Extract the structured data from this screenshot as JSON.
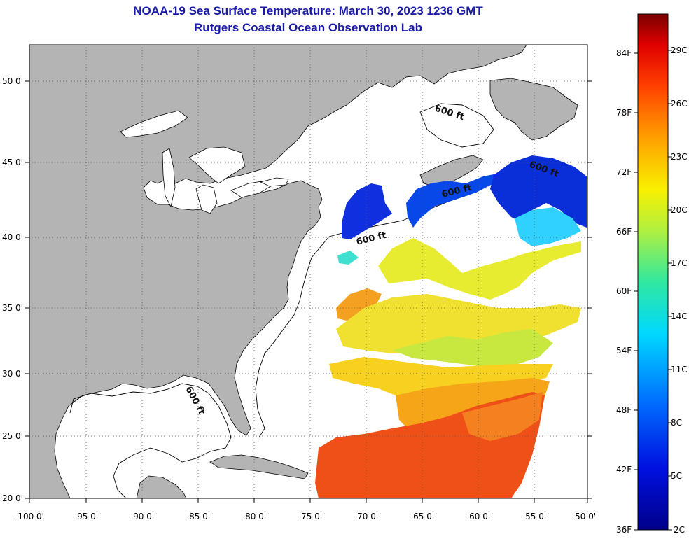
{
  "header": {
    "title": "NOAA-19 Sea Surface Temperature:  March 30, 2023 1236 GMT",
    "subtitle": "Rutgers Coastal Ocean Observation Lab"
  },
  "map": {
    "lon_range": [
      -100,
      -50
    ],
    "lat_range": [
      20,
      52
    ],
    "lon_ticks": [
      "-100 0'",
      "-95 0'",
      "-90 0'",
      "-85 0'",
      "-80 0'",
      "-75 0'",
      "-70 0'",
      "-65 0'",
      "-60 0'",
      "-55 0'",
      "-50 0'"
    ],
    "lat_ticks": [
      "20 0'",
      "25 0'",
      "30 0'",
      "35 0'",
      "40 0'",
      "45 0'",
      "50 0'"
    ],
    "contour_label": "600 ft",
    "land_color": "#b4b4b4",
    "grid": "dotted"
  },
  "colorbar": {
    "fahrenheit_labels": [
      "36F",
      "42F",
      "48F",
      "54F",
      "60F",
      "66F",
      "72F",
      "78F",
      "84F"
    ],
    "celsius_labels": [
      "2C",
      "5C",
      "8C",
      "11C",
      "14C",
      "17C",
      "20C",
      "23C",
      "26C",
      "29C"
    ],
    "range_c": [
      2,
      31
    ]
  }
}
